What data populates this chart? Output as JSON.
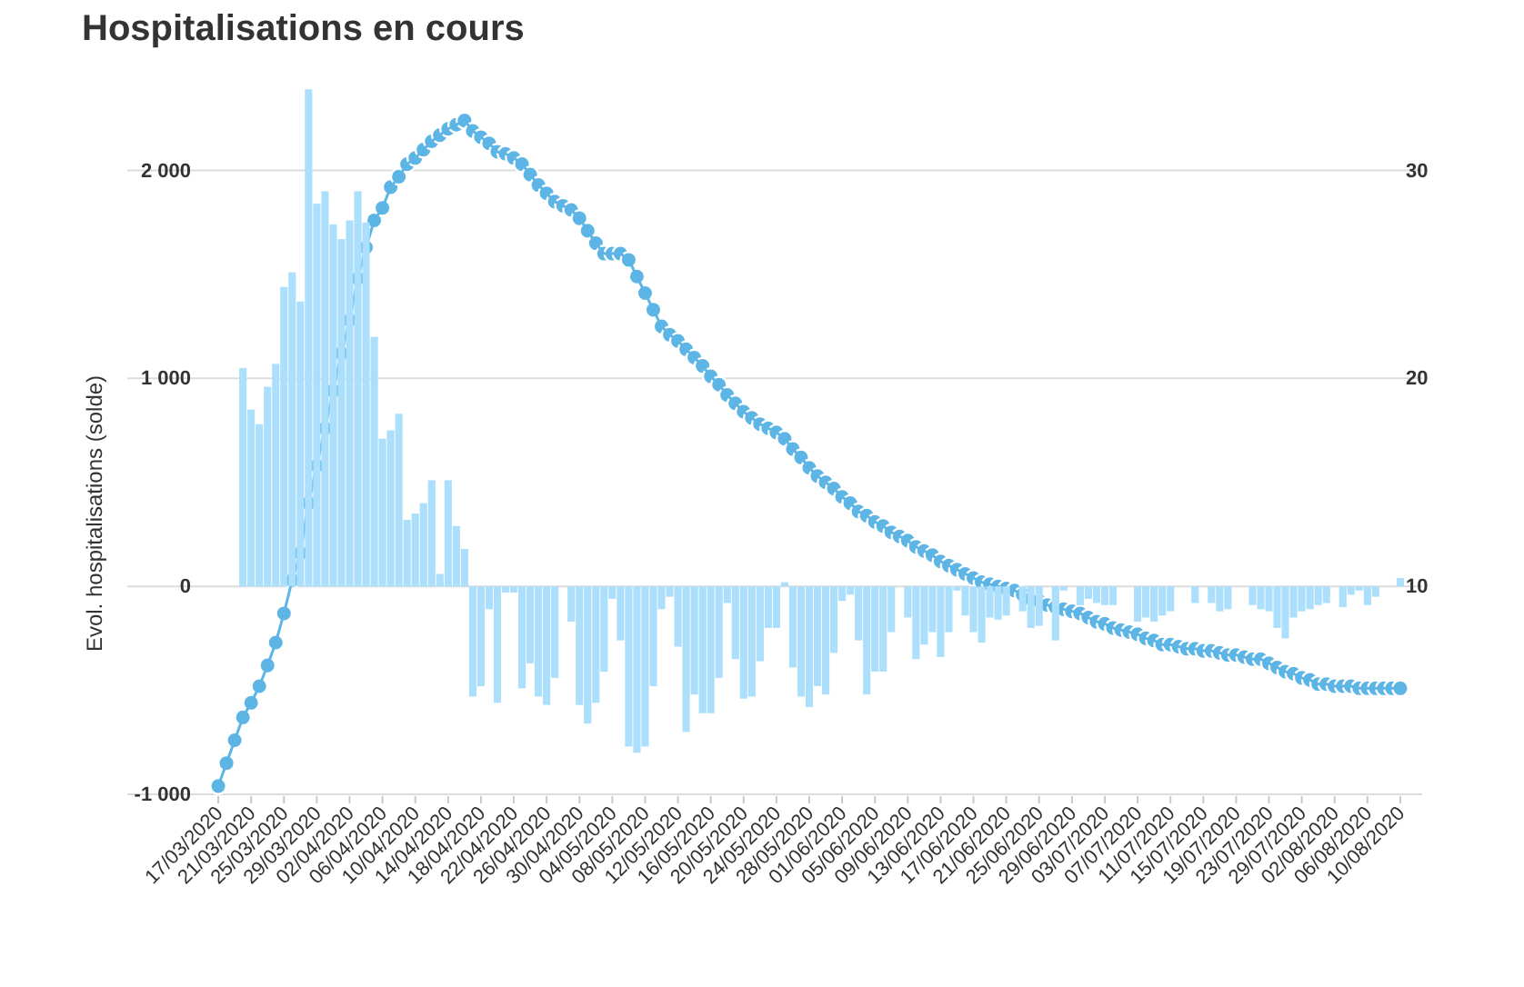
{
  "chart_data": {
    "type": "bar",
    "title": "Hospitalisations en cours",
    "ylabel": "Evol. hospitalisations (solde)",
    "categories": [
      "17/03/2020",
      null,
      null,
      null,
      "21/03/2020",
      null,
      null,
      null,
      "25/03/2020",
      null,
      null,
      null,
      "29/03/2020",
      null,
      null,
      null,
      "02/04/2020",
      null,
      null,
      null,
      "06/04/2020",
      null,
      null,
      null,
      "10/04/2020",
      null,
      null,
      null,
      "14/04/2020",
      null,
      null,
      null,
      "18/04/2020",
      null,
      null,
      null,
      "22/04/2020",
      null,
      null,
      null,
      "26/04/2020",
      null,
      null,
      null,
      "30/04/2020",
      null,
      null,
      null,
      "04/05/2020",
      null,
      null,
      null,
      "08/05/2020",
      null,
      null,
      null,
      "12/05/2020",
      null,
      null,
      null,
      "16/05/2020",
      null,
      null,
      null,
      "20/05/2020",
      null,
      null,
      null,
      "24/05/2020",
      null,
      null,
      null,
      "28/05/2020",
      null,
      null,
      null,
      "01/06/2020",
      null,
      null,
      null,
      "05/06/2020",
      null,
      null,
      null,
      "09/06/2020",
      null,
      null,
      null,
      "13/06/2020",
      null,
      null,
      null,
      "17/06/2020",
      null,
      null,
      null,
      "21/06/2020",
      null,
      null,
      null,
      "25/06/2020",
      null,
      null,
      null,
      "29/06/2020",
      null,
      null,
      null,
      "03/07/2020",
      null,
      null,
      null,
      "07/07/2020",
      null,
      null,
      null,
      "11/07/2020",
      null,
      null,
      null,
      "15/07/2020",
      null,
      null,
      null,
      "19/07/2020",
      null,
      null,
      null,
      "23/07/2020",
      null,
      null,
      null,
      "29/07/2020",
      null,
      null,
      null,
      "02/08/2020",
      null,
      null,
      null,
      "06/08/2020",
      null,
      null,
      null,
      "10/08/2020"
    ],
    "series": [
      {
        "color": "#abdffb",
        "values": [
          null,
          null,
          null,
          1050,
          850,
          780,
          960,
          1070,
          1440,
          1510,
          1370,
          2390,
          1840,
          1900,
          1740,
          1670,
          1760,
          1900,
          1750,
          1200,
          710,
          750,
          830,
          320,
          350,
          400,
          510,
          60,
          510,
          290,
          180,
          -530,
          -480,
          -110,
          -560,
          -30,
          -30,
          -490,
          -370,
          -530,
          -570,
          -440,
          null,
          -170,
          -570,
          -660,
          -560,
          -410,
          -60,
          -260,
          -770,
          -800,
          -770,
          -480,
          -110,
          -50,
          -290,
          -700,
          -520,
          -610,
          -610,
          -440,
          -80,
          -350,
          -540,
          -530,
          -360,
          -200,
          -200,
          20,
          -390,
          -530,
          -580,
          -480,
          -520,
          -320,
          -70,
          -40,
          -260,
          -520,
          -410,
          -410,
          -220,
          null,
          -150,
          -350,
          -280,
          -220,
          -340,
          -220,
          -20,
          -140,
          -220,
          -270,
          -150,
          -160,
          -140,
          null,
          -120,
          -200,
          -190,
          null,
          -260,
          -20,
          null,
          -90,
          -60,
          -80,
          -90,
          -90,
          null,
          null,
          -170,
          -150,
          -170,
          -140,
          -120,
          null,
          null,
          -80,
          null,
          -80,
          -120,
          -110,
          null,
          null,
          -90,
          -110,
          -120,
          -200,
          -250,
          -150,
          -120,
          -110,
          -90,
          -80,
          null,
          -100,
          -40,
          -20,
          -90,
          -50,
          null,
          null,
          40
        ]
      },
      {
        "type": "line",
        "axis": "y2",
        "color": "#5db5e6",
        "values": [
          0.4,
          1.5,
          2.6,
          3.7,
          4.4,
          5.2,
          6.2,
          7.3,
          8.7,
          10.3,
          11.6,
          14.0,
          15.8,
          17.6,
          19.4,
          21.2,
          22.8,
          24.8,
          26.3,
          27.6,
          28.2,
          29.2,
          29.7,
          30.3,
          30.6,
          31.0,
          31.4,
          31.7,
          32.0,
          32.2,
          32.4,
          31.9,
          31.6,
          31.3,
          30.9,
          30.8,
          30.6,
          30.3,
          29.8,
          29.3,
          28.9,
          28.5,
          28.3,
          28.1,
          27.7,
          27.1,
          26.5,
          26.0,
          26.0,
          26.0,
          25.7,
          24.9,
          24.1,
          23.3,
          22.5,
          22.1,
          21.8,
          21.4,
          21.0,
          20.6,
          20.1,
          19.7,
          19.2,
          18.8,
          18.4,
          18.1,
          17.8,
          17.6,
          17.4,
          17.1,
          16.6,
          16.2,
          15.7,
          15.3,
          15.0,
          14.7,
          14.3,
          14.0,
          13.6,
          13.4,
          13.1,
          12.9,
          12.6,
          12.4,
          12.2,
          11.9,
          11.7,
          11.5,
          11.2,
          11.0,
          10.8,
          10.6,
          10.4,
          10.2,
          10.1,
          10.0,
          9.9,
          9.8,
          9.6,
          9.4,
          9.3,
          9.1,
          9.0,
          8.9,
          8.8,
          8.7,
          8.5,
          8.3,
          8.2,
          8.0,
          7.9,
          7.8,
          7.7,
          7.5,
          7.4,
          7.2,
          7.2,
          7.1,
          7.0,
          7.0,
          6.9,
          6.9,
          6.8,
          6.7,
          6.7,
          6.6,
          6.5,
          6.5,
          6.3,
          6.1,
          5.9,
          5.8,
          5.6,
          5.5,
          5.3,
          5.3,
          5.2,
          5.2,
          5.2,
          5.1,
          5.1,
          5.1,
          5.1,
          5.1,
          5.1
        ]
      }
    ],
    "ylim": [
      -1000,
      2400
    ],
    "yticks": [
      {
        "value": -1000,
        "label": "-1 000"
      },
      0,
      {
        "value": 1000,
        "label": "1 000"
      },
      {
        "value": 2000,
        "label": "2 000"
      }
    ],
    "y2lim": [
      0,
      34
    ],
    "y2ticks": [
      10,
      20,
      30
    ],
    "grid": "y",
    "marker": "circle",
    "line_style": "solid"
  }
}
